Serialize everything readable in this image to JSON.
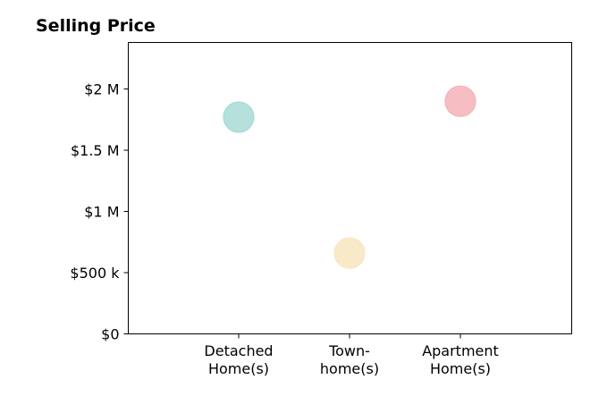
{
  "chart_data": {
    "type": "scatter",
    "title": "Selling Price",
    "xlabel": "",
    "ylabel": "",
    "categories": [
      [
        "Detached",
        "Home(s)"
      ],
      [
        "Town-",
        "home(s)"
      ],
      [
        "Apartment",
        "Home(s)"
      ]
    ],
    "values": [
      1770000,
      660000,
      1900000
    ],
    "colors": [
      "#a8dbd6",
      "#f7e6bf",
      "#f5b3b8"
    ],
    "ylim": [
      0,
      2380000
    ],
    "yticks": [
      0,
      500000,
      1000000,
      1500000,
      2000000
    ],
    "ytick_labels": [
      "$0",
      "$500 k",
      "$1 M",
      "$1.5 M",
      "$2 M"
    ],
    "grid": false,
    "legend": "none"
  }
}
